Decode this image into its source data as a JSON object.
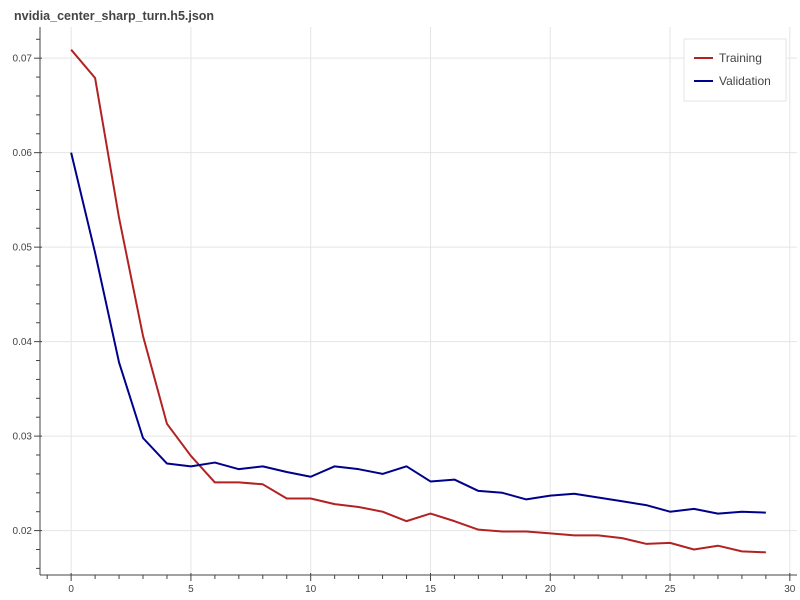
{
  "title": "nvidia_center_sharp_turn.h5.json",
  "chart_data": {
    "type": "line",
    "title": "nvidia_center_sharp_turn.h5.json",
    "xlabel": "",
    "ylabel": "",
    "xlim": [
      -1.3,
      30.3
    ],
    "ylim": [
      0.0153,
      0.0733
    ],
    "xticks": [
      0,
      5,
      10,
      15,
      20,
      25,
      30
    ],
    "xticks_minor": [
      -1,
      1,
      2,
      3,
      4,
      6,
      7,
      8,
      9,
      11,
      12,
      13,
      14,
      16,
      17,
      18,
      19,
      21,
      22,
      23,
      24,
      26,
      27,
      28,
      29
    ],
    "yticks": [
      0.02,
      0.03,
      0.04,
      0.05,
      0.06,
      0.07
    ],
    "ytick_labels": [
      "0.02",
      "0.03",
      "0.04",
      "0.05",
      "0.06",
      "0.07"
    ],
    "grid": true,
    "legend_position": "top-right",
    "x": [
      0,
      1,
      2,
      3,
      4,
      5,
      6,
      7,
      8,
      9,
      10,
      11,
      12,
      13,
      14,
      15,
      16,
      17,
      18,
      19,
      20,
      21,
      22,
      23,
      24,
      25,
      26,
      27,
      28,
      29
    ],
    "series": [
      {
        "name": "Training",
        "color": "#b22222",
        "values": [
          0.0709,
          0.0679,
          0.0531,
          0.0406,
          0.0313,
          0.0279,
          0.0251,
          0.0251,
          0.0249,
          0.0234,
          0.0234,
          0.0228,
          0.0225,
          0.022,
          0.021,
          0.0218,
          0.021,
          0.0201,
          0.0199,
          0.0199,
          0.0197,
          0.0195,
          0.0195,
          0.0192,
          0.0186,
          0.0187,
          0.018,
          0.0184,
          0.0178,
          0.0177
        ]
      },
      {
        "name": "Validation",
        "color": "#00008b",
        "values": [
          0.06,
          0.0494,
          0.0378,
          0.0298,
          0.0271,
          0.0268,
          0.0272,
          0.0265,
          0.0268,
          0.0262,
          0.0257,
          0.0268,
          0.0265,
          0.026,
          0.0268,
          0.0252,
          0.0254,
          0.0242,
          0.024,
          0.0233,
          0.0237,
          0.0239,
          0.0235,
          0.0231,
          0.0227,
          0.022,
          0.0223,
          0.0218,
          0.022,
          0.0219
        ]
      }
    ]
  }
}
